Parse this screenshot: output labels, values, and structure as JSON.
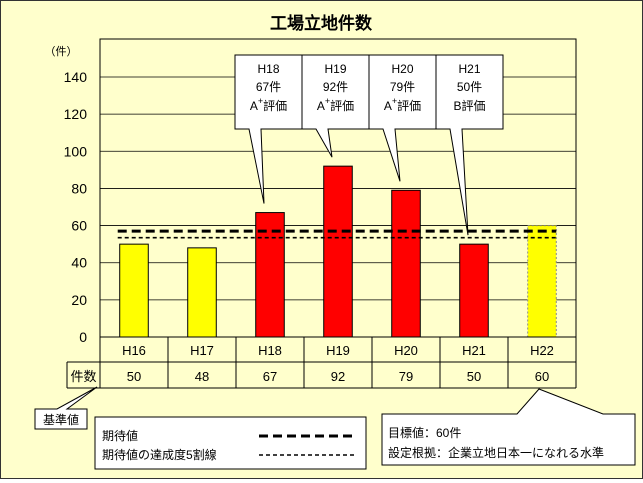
{
  "chart_data": {
    "type": "bar",
    "title": "工場立地件数",
    "unit_label": "（件）",
    "categories": [
      "H16",
      "H17",
      "H18",
      "H19",
      "H20",
      "H21",
      "H22"
    ],
    "values": [
      50,
      48,
      67,
      92,
      79,
      50,
      60
    ],
    "bar_colors": [
      "#ffff00",
      "#ffff00",
      "#ff0000",
      "#ff0000",
      "#ff0000",
      "#ff0000",
      "#ffff00"
    ],
    "target_bar_index": 6,
    "ylim": [
      0,
      140
    ],
    "y_ticks": [
      0,
      20,
      40,
      60,
      80,
      100,
      120,
      140
    ],
    "grid": true,
    "reference_lines": [
      {
        "name": "期待値",
        "value": 57,
        "style": "dashed-thick"
      },
      {
        "name": "期待値の達成度5割線",
        "value": 53.5,
        "style": "dashed-thin"
      }
    ],
    "table": {
      "row_label": "件数",
      "values": [
        "50",
        "48",
        "67",
        "92",
        "79",
        "50",
        "60"
      ]
    },
    "callouts": [
      {
        "category": "H18",
        "lines": [
          "H18",
          "67件"
        ],
        "grade": "A",
        "grade_sup": "+",
        "grade_suffix": "評価"
      },
      {
        "category": "H19",
        "lines": [
          "H19",
          "92件"
        ],
        "grade": "A",
        "grade_sup": "+",
        "grade_suffix": "評価"
      },
      {
        "category": "H20",
        "lines": [
          "H20",
          "79件"
        ],
        "grade": "A",
        "grade_sup": "+",
        "grade_suffix": "評価"
      },
      {
        "category": "H21",
        "lines": [
          "H21",
          "50件"
        ],
        "grade": "B",
        "grade_sup": "",
        "grade_suffix": "評価"
      }
    ],
    "baseline_label": "基準値",
    "legend": [
      {
        "label": "期待値",
        "style": "dashed-thick"
      },
      {
        "label": "期待値の達成度5割線",
        "style": "dashed-thin"
      }
    ],
    "target_note": [
      "目標値：60件",
      "設定根拠：企業立地日本一になれる水準"
    ]
  }
}
